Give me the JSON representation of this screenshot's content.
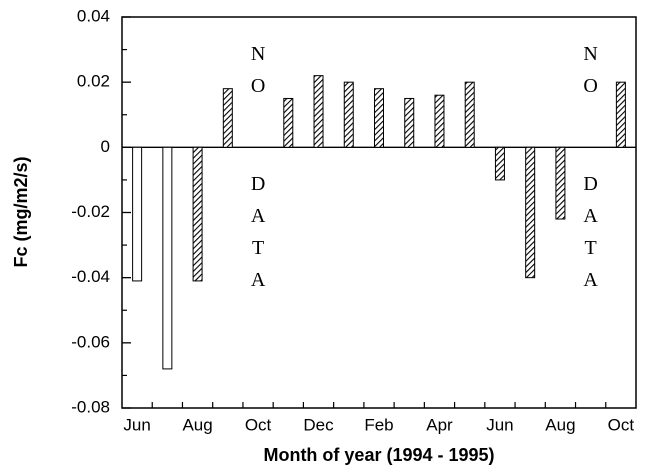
{
  "chart_data": {
    "type": "bar",
    "x_label": "Month of year (1994 - 1995)",
    "y_label": "Fc (mg/m2/s)",
    "categories": [
      "Jun",
      null,
      "Aug",
      null,
      "Oct",
      null,
      "Dec",
      null,
      "Feb",
      null,
      "Apr",
      null,
      "Jun",
      null,
      "Aug",
      null,
      "Oct"
    ],
    "series": [
      {
        "color": "#ffffff",
        "pattern": "solid",
        "values": [
          -0.041,
          -0.068,
          null,
          null,
          null,
          null,
          null,
          null,
          null,
          null,
          null,
          null,
          null,
          null,
          null,
          null,
          null
        ]
      },
      {
        "color": "#000000",
        "pattern": "hatch",
        "values": [
          null,
          null,
          -0.041,
          0.018,
          null,
          0.015,
          0.022,
          0.02,
          0.018,
          0.015,
          0.016,
          0.02,
          -0.01,
          -0.04,
          -0.022,
          null,
          0.02
        ]
      }
    ],
    "annotations": [
      "NO DATA",
      "NO DATA"
    ],
    "ylim": [
      -0.08,
      0.04
    ],
    "yticks": [
      -0.08,
      -0.06,
      -0.04,
      -0.02,
      0,
      0.02,
      0.04
    ],
    "minor_yticks": [
      -0.07,
      -0.05,
      -0.03,
      -0.01,
      0.01,
      0.03
    ],
    "grid": false
  }
}
